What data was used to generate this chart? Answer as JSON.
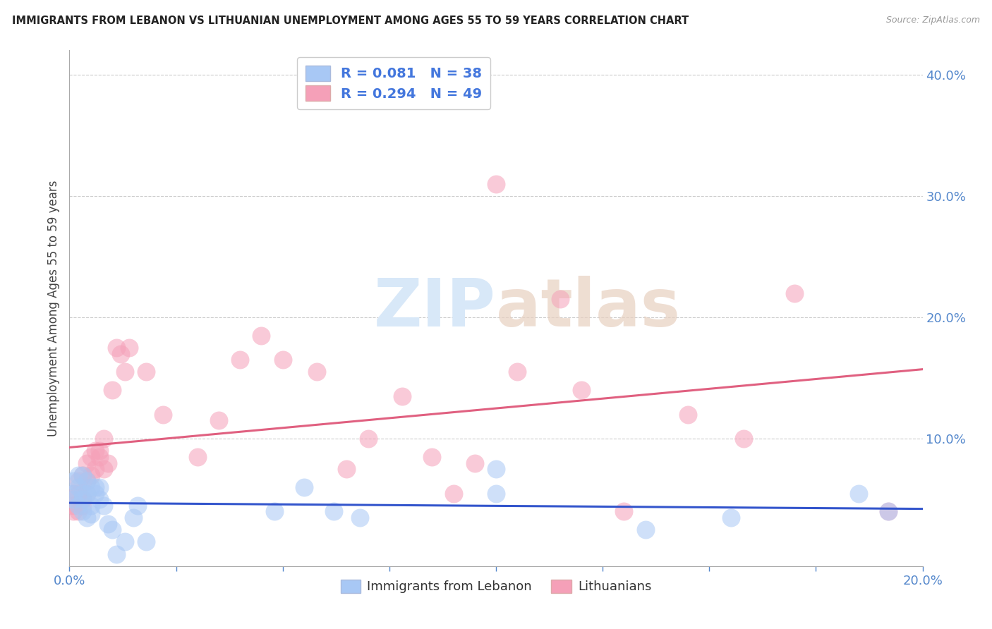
{
  "title": "IMMIGRANTS FROM LEBANON VS LITHUANIAN UNEMPLOYMENT AMONG AGES 55 TO 59 YEARS CORRELATION CHART",
  "source": "Source: ZipAtlas.com",
  "ylabel": "Unemployment Among Ages 55 to 59 years",
  "legend_labels": [
    "Immigrants from Lebanon",
    "Lithuanians"
  ],
  "r_lebanon": 0.081,
  "n_lebanon": 38,
  "r_lithuanian": 0.294,
  "n_lithuanian": 49,
  "blue_color": "#a8c8f5",
  "pink_color": "#f5a0b8",
  "blue_line_color": "#3355cc",
  "pink_line_color": "#e06080",
  "text_blue": "#4477dd",
  "watermark_color": "#d8e8f8",
  "axis_color": "#5588cc",
  "grid_color": "#cccccc",
  "xlim": [
    0.0,
    0.2
  ],
  "ylim": [
    -0.005,
    0.42
  ],
  "xticks": [
    0.0,
    0.025,
    0.05,
    0.075,
    0.1,
    0.125,
    0.15,
    0.175,
    0.2
  ],
  "yticks_right": [
    0.1,
    0.2,
    0.3,
    0.4
  ],
  "lebanon_x": [
    0.001,
    0.001,
    0.001,
    0.002,
    0.002,
    0.002,
    0.003,
    0.003,
    0.003,
    0.003,
    0.004,
    0.004,
    0.004,
    0.005,
    0.005,
    0.005,
    0.006,
    0.006,
    0.007,
    0.007,
    0.008,
    0.009,
    0.01,
    0.011,
    0.013,
    0.015,
    0.016,
    0.018,
    0.048,
    0.055,
    0.062,
    0.068,
    0.1,
    0.1,
    0.135,
    0.155,
    0.185,
    0.192
  ],
  "lebanon_y": [
    0.065,
    0.055,
    0.05,
    0.07,
    0.06,
    0.045,
    0.055,
    0.07,
    0.05,
    0.04,
    0.065,
    0.055,
    0.035,
    0.06,
    0.045,
    0.038,
    0.055,
    0.06,
    0.05,
    0.06,
    0.045,
    0.03,
    0.025,
    0.005,
    0.015,
    0.035,
    0.045,
    0.015,
    0.04,
    0.06,
    0.04,
    0.035,
    0.075,
    0.055,
    0.025,
    0.035,
    0.055,
    0.04
  ],
  "lithuanian_x": [
    0.001,
    0.001,
    0.001,
    0.002,
    0.002,
    0.002,
    0.003,
    0.003,
    0.003,
    0.004,
    0.004,
    0.004,
    0.005,
    0.005,
    0.006,
    0.006,
    0.007,
    0.007,
    0.008,
    0.008,
    0.009,
    0.01,
    0.011,
    0.012,
    0.013,
    0.014,
    0.018,
    0.022,
    0.03,
    0.035,
    0.04,
    0.045,
    0.05,
    0.058,
    0.065,
    0.07,
    0.078,
    0.085,
    0.09,
    0.095,
    0.1,
    0.105,
    0.115,
    0.12,
    0.13,
    0.145,
    0.158,
    0.17,
    0.192
  ],
  "lithuanian_y": [
    0.055,
    0.045,
    0.04,
    0.065,
    0.055,
    0.04,
    0.07,
    0.05,
    0.045,
    0.065,
    0.08,
    0.055,
    0.085,
    0.07,
    0.09,
    0.075,
    0.09,
    0.085,
    0.1,
    0.075,
    0.08,
    0.14,
    0.175,
    0.17,
    0.155,
    0.175,
    0.155,
    0.12,
    0.085,
    0.115,
    0.165,
    0.185,
    0.165,
    0.155,
    0.075,
    0.1,
    0.135,
    0.085,
    0.055,
    0.08,
    0.31,
    0.155,
    0.215,
    0.14,
    0.04,
    0.12,
    0.1,
    0.22,
    0.04
  ]
}
